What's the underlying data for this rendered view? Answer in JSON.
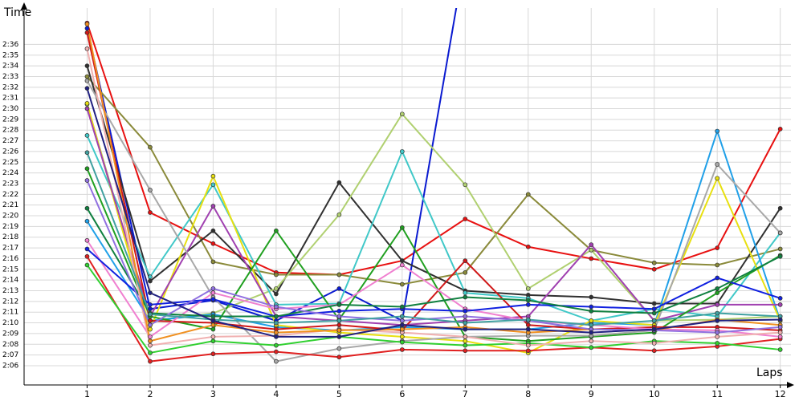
{
  "chart_data": {
    "type": "line",
    "xlabel": "Laps",
    "ylabel": "Time",
    "x": [
      1,
      2,
      3,
      4,
      5,
      6,
      7,
      8,
      9,
      10,
      11,
      12
    ],
    "xlim": [
      0,
      12.17
    ],
    "xticks": [
      1,
      2,
      3,
      4,
      5,
      6,
      7,
      8,
      9,
      10,
      11,
      12
    ],
    "ylim": [
      124.2,
      159.4
    ],
    "yticks": [
      {
        "value": 126,
        "label": "2:06"
      },
      {
        "value": 127,
        "label": "2:07"
      },
      {
        "value": 128,
        "label": "2:08"
      },
      {
        "value": 129,
        "label": "2:09"
      },
      {
        "value": 130,
        "label": "2:10"
      },
      {
        "value": 131,
        "label": "2:11"
      },
      {
        "value": 132,
        "label": "2:12"
      },
      {
        "value": 133,
        "label": "2:13"
      },
      {
        "value": 134,
        "label": "2:14"
      },
      {
        "value": 135,
        "label": "2:15"
      },
      {
        "value": 136,
        "label": "2:16"
      },
      {
        "value": 137,
        "label": "2:17"
      },
      {
        "value": 138,
        "label": "2:18"
      },
      {
        "value": 139,
        "label": "2:19"
      },
      {
        "value": 140,
        "label": "2:20"
      },
      {
        "value": 141,
        "label": "2:21"
      },
      {
        "value": 142,
        "label": "2:22"
      },
      {
        "value": 143,
        "label": "2:23"
      },
      {
        "value": 144,
        "label": "2:24"
      },
      {
        "value": 145,
        "label": "2:25"
      },
      {
        "value": 146,
        "label": "2:26"
      },
      {
        "value": 147,
        "label": "2:27"
      },
      {
        "value": 148,
        "label": "2:28"
      },
      {
        "value": 149,
        "label": "2:29"
      },
      {
        "value": 150,
        "label": "2:30"
      },
      {
        "value": 151,
        "label": "2:31"
      },
      {
        "value": 152,
        "label": "2:32"
      },
      {
        "value": 153,
        "label": "2:33"
      },
      {
        "value": 154,
        "label": "2:34"
      },
      {
        "value": 155,
        "label": "2:35"
      },
      {
        "value": 156,
        "label": "2:36"
      }
    ],
    "grid": true,
    "series": [
      {
        "color": "#e81010",
        "values": [
          158.0,
          140.3,
          137.4,
          134.7,
          134.5,
          135.8,
          139.7,
          137.1,
          136.0,
          135.0,
          137.0,
          148.1
        ]
      },
      {
        "color": "#0a1ad0",
        "values": [
          157.5,
          131.3,
          132.1,
          130.2,
          133.2,
          130.2,
          164.2,
          null,
          null,
          null,
          null,
          null
        ]
      },
      {
        "color": "#8a8a3a",
        "values": [
          153.0,
          146.4,
          135.7,
          134.5,
          134.5,
          133.6,
          134.7,
          142.0,
          136.8,
          135.6,
          135.4,
          136.9
        ]
      },
      {
        "color": "#303030",
        "values": [
          154.0,
          133.9,
          138.6,
          132.7,
          143.1,
          135.8,
          133.0,
          132.6,
          132.4,
          131.8,
          131.8,
          140.7
        ]
      },
      {
        "color": "#b0d070",
        "values": [
          150.4,
          130.2,
          130.9,
          133.2,
          140.1,
          149.5,
          142.9,
          133.2,
          136.8,
          130.2,
          130.3,
          130.6
        ]
      },
      {
        "color": "#40c8c8",
        "values": [
          147.5,
          134.3,
          142.9,
          131.7,
          131.8,
          146.0,
          132.8,
          132.3,
          130.2,
          131.3,
          130.6,
          138.4
        ]
      },
      {
        "color": "#20a0e8",
        "values": [
          139.5,
          130.2,
          130.8,
          129.6,
          129.3,
          129.6,
          129.4,
          129.4,
          130.0,
          129.8,
          147.9,
          130.2
        ]
      },
      {
        "color": "#e8e010",
        "values": [
          150.5,
          129.4,
          143.7,
          129.8,
          129.1,
          128.7,
          128.3,
          127.2,
          130.2,
          129.8,
          143.5,
          130.2
        ]
      },
      {
        "color": "#a040b0",
        "values": [
          150.0,
          130.6,
          140.9,
          130.6,
          130.2,
          129.8,
          130.2,
          130.6,
          137.3,
          130.2,
          131.7,
          131.7
        ]
      },
      {
        "color": "#20a020",
        "values": [
          144.4,
          130.6,
          129.4,
          138.6,
          130.3,
          138.9,
          128.7,
          128.3,
          128.7,
          129.1,
          132.8,
          136.3
        ]
      },
      {
        "color": "#a8a8a8",
        "values": [
          152.6,
          142.4,
          132.4,
          126.4,
          127.6,
          128.3,
          128.7,
          128.8,
          128.8,
          129.3,
          144.8,
          138.4
        ]
      },
      {
        "color": "#e02020",
        "values": [
          136.2,
          126.4,
          127.1,
          127.3,
          126.8,
          127.5,
          127.4,
          127.4,
          127.7,
          127.4,
          127.8,
          128.5
        ]
      },
      {
        "color": "#30d030",
        "values": [
          135.4,
          127.2,
          128.3,
          127.9,
          128.7,
          128.2,
          127.9,
          128.1,
          127.7,
          128.3,
          128.1,
          127.5
        ]
      },
      {
        "color": "#d01818",
        "values": [
          157.1,
          130.2,
          130.0,
          129.4,
          129.8,
          129.3,
          135.8,
          129.8,
          129.4,
          129.6,
          129.6,
          129.3
        ]
      },
      {
        "color": "#f080d0",
        "values": [
          137.7,
          128.7,
          132.8,
          131.3,
          131.7,
          135.4,
          131.3,
          130.2,
          129.8,
          129.4,
          129.3,
          128.7
        ]
      },
      {
        "color": "#1020e0",
        "values": [
          136.9,
          131.7,
          132.2,
          130.6,
          131.1,
          131.3,
          131.1,
          131.7,
          131.5,
          131.3,
          134.2,
          132.3
        ]
      },
      {
        "color": "#108040",
        "values": [
          140.7,
          130.9,
          130.6,
          130.6,
          131.7,
          131.5,
          132.4,
          132.1,
          131.1,
          130.9,
          133.2,
          136.2
        ]
      },
      {
        "color": "#f0b0b0",
        "values": [
          155.6,
          127.9,
          128.7,
          128.8,
          129.4,
          129.1,
          128.7,
          127.9,
          128.3,
          128.1,
          128.7,
          129.1
        ]
      },
      {
        "color": "#f09020",
        "values": [
          157.9,
          128.3,
          129.8,
          129.1,
          129.3,
          129.4,
          129.6,
          129.1,
          129.4,
          129.3,
          130.3,
          129.8
        ]
      },
      {
        "color": "#9070e0",
        "values": [
          143.3,
          129.8,
          133.2,
          131.5,
          130.6,
          130.2,
          130.6,
          130.2,
          129.4,
          129.3,
          129.1,
          129.6
        ]
      },
      {
        "color": "#40a0a0",
        "values": [
          145.9,
          130.8,
          130.3,
          130.0,
          130.2,
          130.6,
          130.0,
          130.3,
          129.8,
          130.2,
          130.9,
          130.6
        ]
      },
      {
        "color": "#202080",
        "values": [
          151.9,
          132.8,
          130.2,
          128.7,
          128.7,
          129.8,
          129.4,
          129.4,
          129.1,
          129.4,
          130.2,
          130.3
        ]
      }
    ]
  }
}
